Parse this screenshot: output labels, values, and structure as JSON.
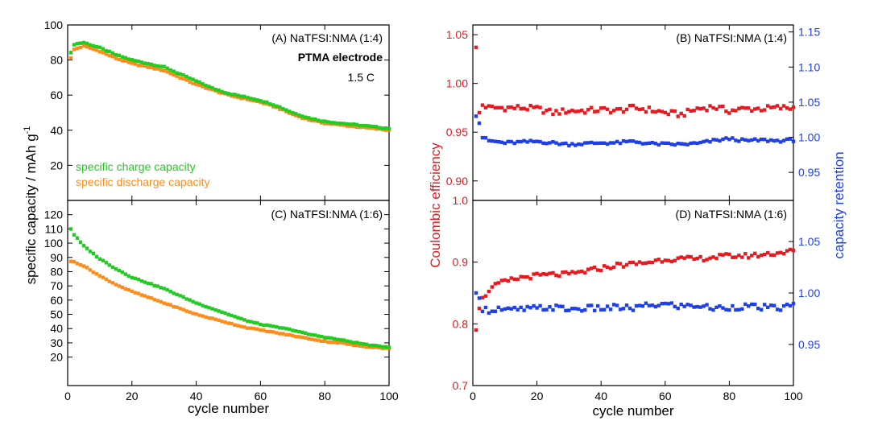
{
  "chart_data": [
    {
      "id": "A",
      "type": "scatter",
      "annotations": [
        "(A) NaTFSI:NMA (1:4)",
        "PTMA electrode",
        "1.5 C"
      ],
      "xlabel": "cycle number",
      "ylabel": "specific capacity / mAh g",
      "ylabel_sup": "-1",
      "xlim": [
        0,
        100
      ],
      "ylim": [
        0,
        100
      ],
      "xticks": [
        0,
        20,
        40,
        60,
        80,
        100
      ],
      "yticks": [
        20,
        40,
        60,
        80,
        100
      ],
      "xticklabels_shown": false,
      "legend": [
        {
          "name": "specific charge capacity",
          "color": "#22cc22"
        },
        {
          "name": "specific discharge capacity",
          "color": "#ff8c1a"
        }
      ],
      "series": [
        {
          "name": "specific charge capacity",
          "color": "#22cc22",
          "x": [
            1,
            2,
            5,
            10,
            15,
            20,
            25,
            30,
            35,
            40,
            45,
            50,
            55,
            60,
            65,
            70,
            75,
            80,
            85,
            90,
            95,
            100
          ],
          "y": [
            84,
            89,
            90,
            87,
            83,
            80,
            78,
            76,
            72,
            68,
            64,
            61,
            59,
            57,
            54,
            50,
            47,
            45,
            44,
            43,
            42,
            41
          ]
        },
        {
          "name": "specific discharge capacity",
          "color": "#ff8c1a",
          "x": [
            1,
            2,
            5,
            10,
            15,
            20,
            25,
            30,
            35,
            40,
            45,
            50,
            55,
            60,
            65,
            70,
            75,
            80,
            85,
            90,
            95,
            100
          ],
          "y": [
            81,
            86,
            88,
            85,
            81,
            78,
            76,
            74,
            70,
            66,
            63,
            60,
            58,
            56,
            53,
            49,
            46,
            44,
            43,
            42,
            41,
            40
          ]
        }
      ]
    },
    {
      "id": "C",
      "type": "scatter",
      "annotations": [
        "(C) NaTFSI:NMA (1:6)"
      ],
      "xlabel": "cycle number",
      "xlim": [
        0,
        100
      ],
      "ylim": [
        0,
        130
      ],
      "xticks": [
        0,
        20,
        40,
        60,
        80,
        100
      ],
      "yticks": [
        20,
        30,
        40,
        50,
        60,
        70,
        80,
        90,
        100,
        110,
        120
      ],
      "series": [
        {
          "name": "specific charge capacity",
          "color": "#22cc22",
          "x": [
            1,
            2,
            5,
            10,
            15,
            20,
            25,
            30,
            35,
            40,
            45,
            50,
            55,
            60,
            65,
            70,
            75,
            80,
            85,
            90,
            95,
            100
          ],
          "y": [
            110,
            106,
            98,
            89,
            82,
            76,
            72,
            68,
            63,
            58,
            54,
            50,
            46,
            43,
            41,
            39,
            36,
            34,
            32,
            30,
            28,
            27
          ]
        },
        {
          "name": "specific discharge capacity",
          "color": "#ff8c1a",
          "x": [
            1,
            2,
            5,
            10,
            15,
            20,
            25,
            30,
            35,
            40,
            45,
            50,
            55,
            60,
            65,
            70,
            75,
            80,
            85,
            90,
            95,
            100
          ],
          "y": [
            87,
            87,
            84,
            77,
            71,
            66,
            62,
            58,
            54,
            50,
            47,
            44,
            41,
            39,
            37,
            35,
            33,
            31,
            30,
            28,
            27,
            26
          ]
        }
      ]
    },
    {
      "id": "B",
      "type": "scatter",
      "annotations": [
        "(B) NaTFSI:NMA (1:4)"
      ],
      "xlim": [
        0,
        100
      ],
      "ylim_left": [
        0.88,
        1.06
      ],
      "ylim_right": [
        0.91,
        1.16
      ],
      "yticks_left": [
        0.9,
        0.95,
        1.0,
        1.05
      ],
      "yticks_right": [
        0.95,
        1.0,
        1.05,
        1.1,
        1.15
      ],
      "xticks": [
        0,
        20,
        40,
        60,
        80,
        100
      ],
      "xticklabels_shown": false,
      "series": [
        {
          "name": "Coulombic efficiency",
          "axis": "left",
          "color": "#e8191f",
          "x": [
            1,
            2,
            3,
            5,
            10,
            15,
            20,
            25,
            30,
            35,
            40,
            45,
            50,
            55,
            60,
            65,
            70,
            75,
            80,
            85,
            90,
            95,
            100
          ],
          "y": [
            1.037,
            0.97,
            0.978,
            0.975,
            0.975,
            0.975,
            0.974,
            0.97,
            0.972,
            0.972,
            0.973,
            0.972,
            0.975,
            0.973,
            0.97,
            0.968,
            0.974,
            0.976,
            0.972,
            0.974,
            0.974,
            0.975,
            0.975
          ]
        },
        {
          "name": "capacity retention",
          "axis": "right",
          "color": "#1f3fe8",
          "x": [
            1,
            2,
            3,
            5,
            10,
            15,
            20,
            25,
            30,
            35,
            40,
            45,
            50,
            55,
            60,
            65,
            70,
            75,
            80,
            85,
            90,
            95,
            100
          ],
          "y": [
            1.03,
            1.02,
            1.0,
            0.995,
            0.992,
            0.993,
            0.994,
            0.992,
            0.99,
            0.991,
            0.992,
            0.992,
            0.994,
            0.991,
            0.99,
            0.99,
            0.991,
            0.995,
            0.998,
            0.995,
            0.996,
            0.995,
            0.996
          ]
        }
      ]
    },
    {
      "id": "D",
      "type": "scatter",
      "annotations": [
        "(D) NaTFSI:NMA (1:6)"
      ],
      "xlabel": "cycle number",
      "ylabel_left": "Coulombic efficiency",
      "ylabel_right": "capacity retention",
      "xlim": [
        0,
        100
      ],
      "ylim_left": [
        0.7,
        1.0
      ],
      "ylim_right": [
        0.91,
        1.09
      ],
      "yticks_left": [
        0.7,
        0.8,
        0.9,
        1.0
      ],
      "yticks_right": [
        0.95,
        1.0,
        1.05
      ],
      "xticks": [
        0,
        20,
        40,
        60,
        80,
        100
      ],
      "series": [
        {
          "name": "Coulombic efficiency",
          "axis": "left",
          "color": "#e8191f",
          "x": [
            1,
            2,
            3,
            5,
            8,
            10,
            15,
            20,
            25,
            30,
            35,
            40,
            45,
            50,
            55,
            60,
            65,
            70,
            75,
            80,
            85,
            90,
            95,
            100
          ],
          "y": [
            0.79,
            0.825,
            0.84,
            0.855,
            0.865,
            0.868,
            0.875,
            0.878,
            0.88,
            0.88,
            0.885,
            0.89,
            0.895,
            0.897,
            0.9,
            0.905,
            0.905,
            0.905,
            0.908,
            0.91,
            0.91,
            0.912,
            0.915,
            0.918
          ]
        },
        {
          "name": "capacity retention",
          "axis": "right",
          "color": "#1f3fe8",
          "x": [
            1,
            2,
            3,
            5,
            8,
            10,
            15,
            20,
            25,
            30,
            35,
            40,
            45,
            50,
            55,
            60,
            65,
            70,
            75,
            80,
            85,
            90,
            95,
            100
          ],
          "y": [
            1.0,
            0.995,
            0.985,
            0.983,
            0.985,
            0.983,
            0.984,
            0.985,
            0.986,
            0.984,
            0.985,
            0.985,
            0.986,
            0.985,
            0.988,
            0.989,
            0.987,
            0.988,
            0.985,
            0.986,
            0.987,
            0.986,
            0.985,
            0.988
          ]
        }
      ]
    }
  ]
}
